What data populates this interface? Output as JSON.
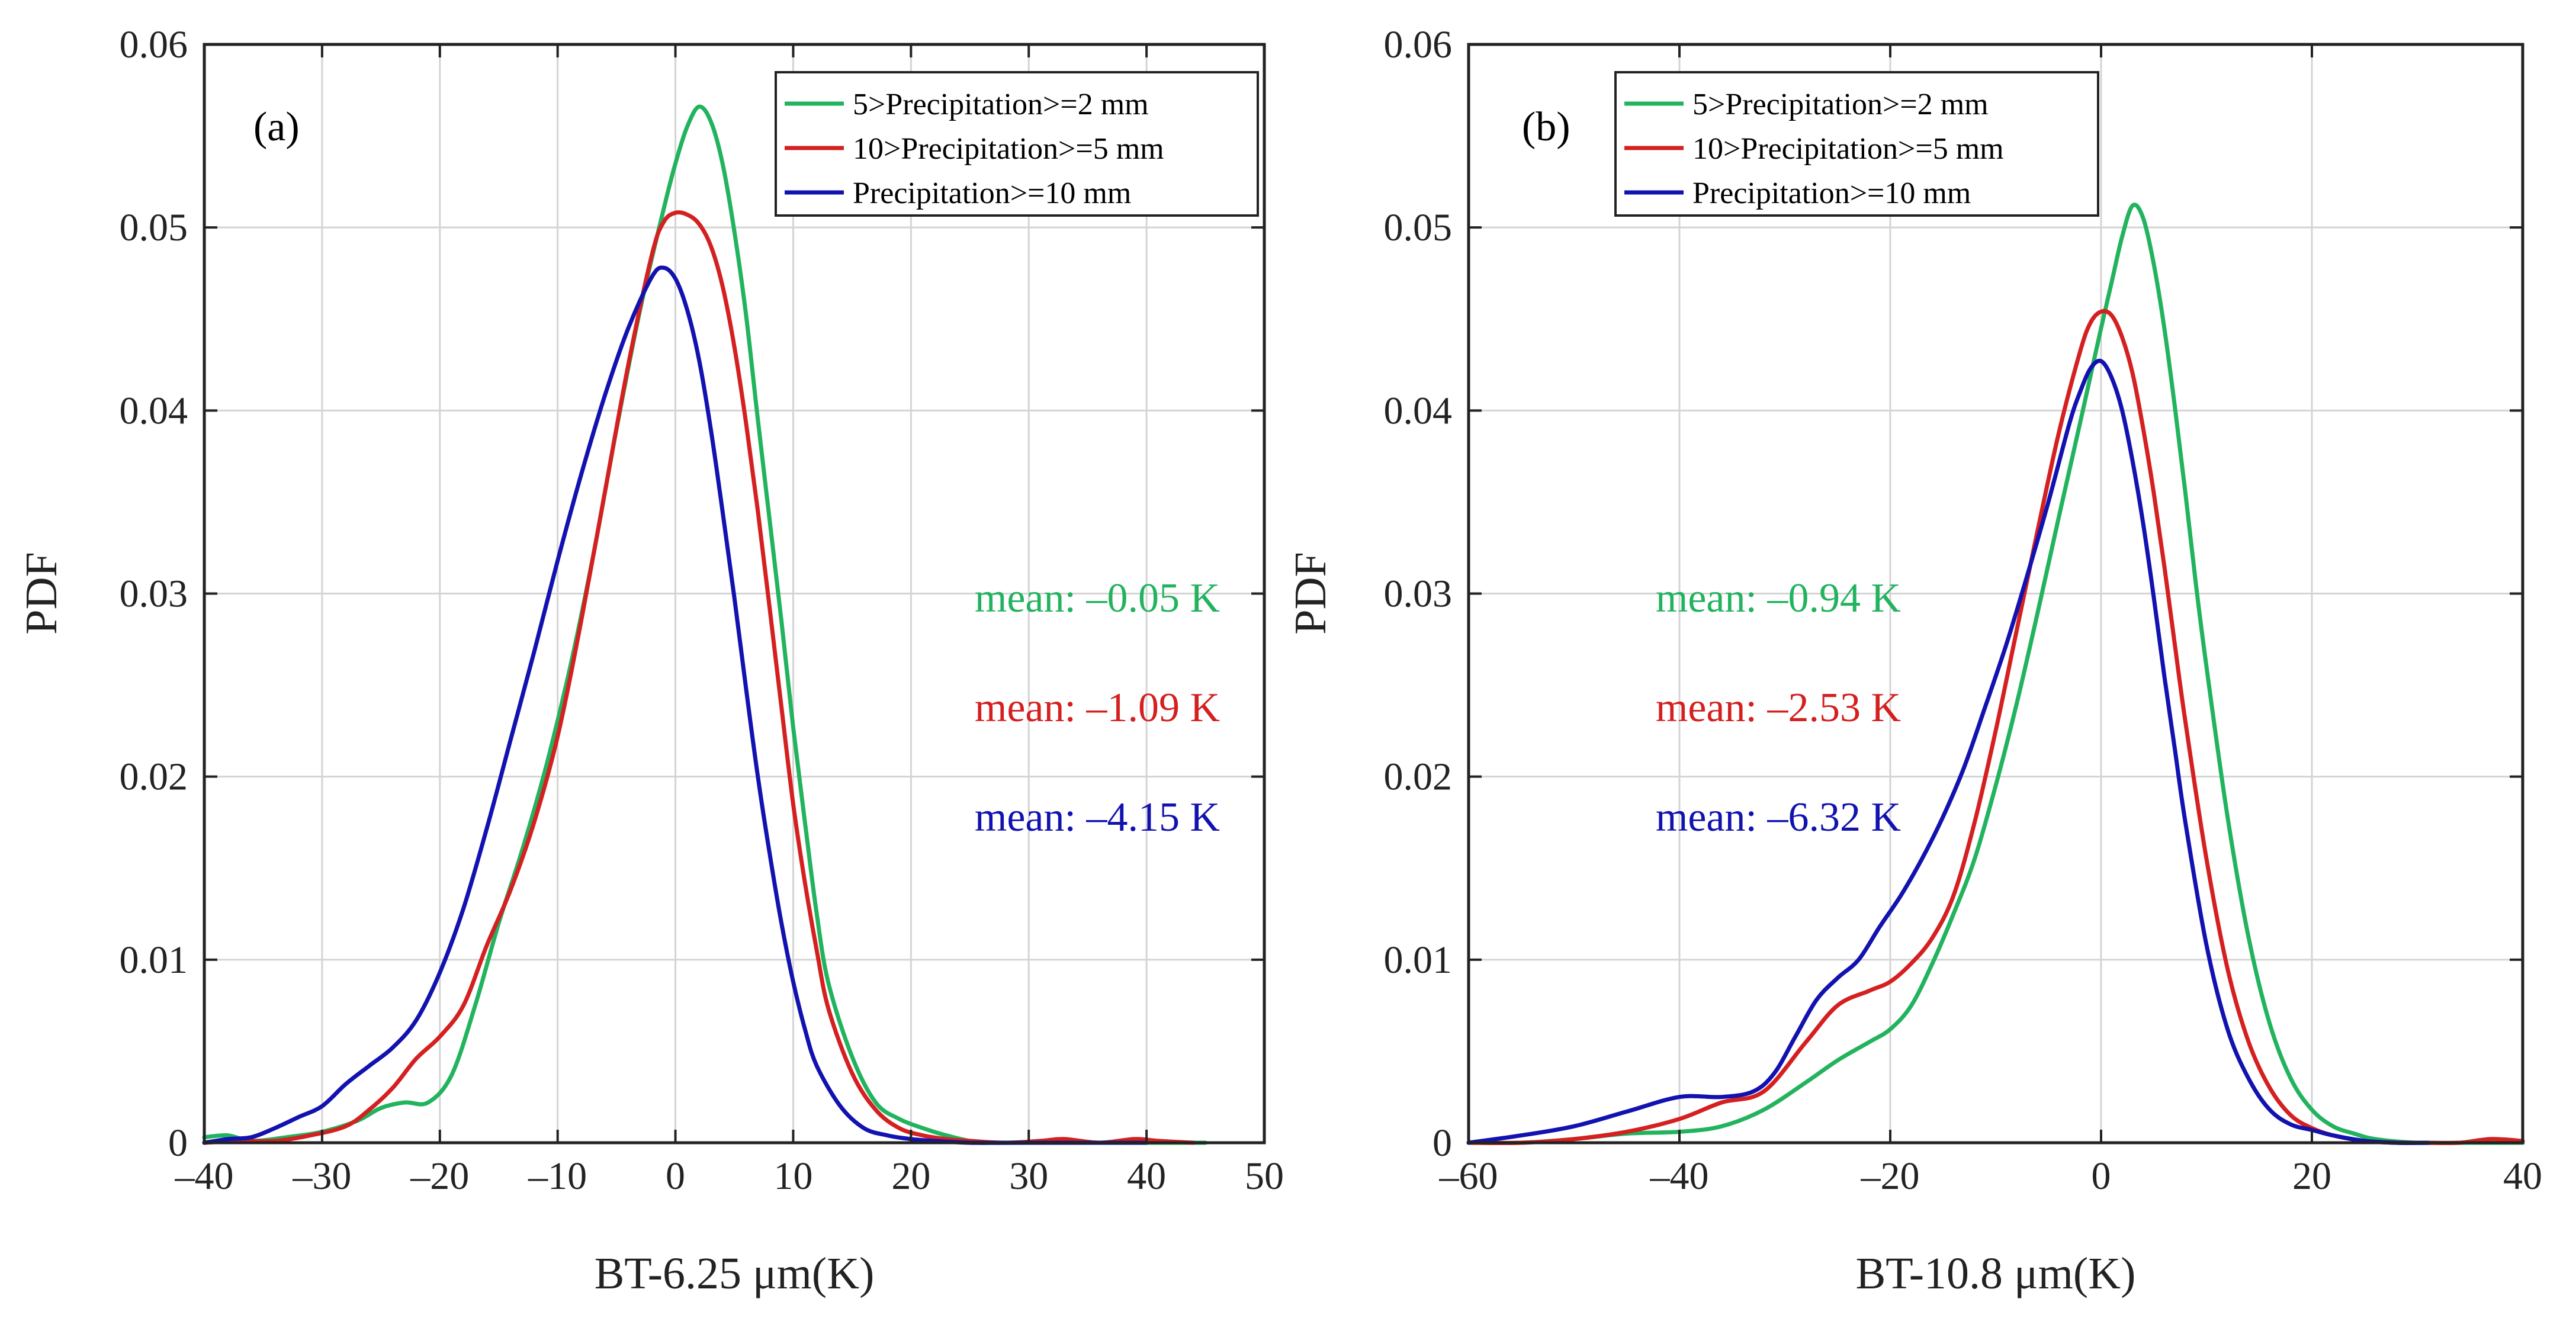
{
  "colors": {
    "green": "#22b35e",
    "red": "#d42020",
    "blue": "#1212b0"
  },
  "chart_data": [
    {
      "type": "line",
      "panel_tag": "(a)",
      "xlabel": "BT-6.25 μm(K)",
      "ylabel": "PDF",
      "xlim": [
        -40,
        50
      ],
      "ylim": [
        0,
        0.06
      ],
      "xticks": [
        -40,
        -30,
        -20,
        -10,
        0,
        10,
        20,
        30,
        40,
        50
      ],
      "xtick_labels": [
        "–40",
        "–30",
        "–20",
        "–10",
        "0",
        "10",
        "20",
        "30",
        "40",
        "50"
      ],
      "yticks": [
        0,
        0.01,
        0.02,
        0.03,
        0.04,
        0.05,
        0.06
      ],
      "ytick_labels": [
        "0",
        "0.01",
        "0.02",
        "0.03",
        "0.04",
        "0.05",
        "0.06"
      ],
      "grid": true,
      "legend_position": "top-right",
      "series": [
        {
          "name": "5>Precipitation>=2 mm",
          "color_key": "green",
          "x": [
            -40,
            -38,
            -36,
            -33,
            -30,
            -27,
            -25,
            -23,
            -21,
            -19,
            -17,
            -15,
            -13,
            -11,
            -9,
            -7,
            -5,
            -3,
            -1,
            0,
            1,
            2,
            3,
            4,
            5,
            6,
            7,
            8,
            9,
            10,
            11,
            12,
            13,
            15,
            17,
            19,
            21,
            23,
            25,
            27,
            30,
            35,
            40,
            45
          ],
          "y": [
            0.0003,
            0.0004,
            0.0001,
            0.0003,
            0.0006,
            0.0012,
            0.0019,
            0.0022,
            0.0022,
            0.0037,
            0.0075,
            0.012,
            0.016,
            0.0205,
            0.0258,
            0.032,
            0.039,
            0.0455,
            0.051,
            0.0535,
            0.0555,
            0.0566,
            0.0558,
            0.0535,
            0.0498,
            0.0452,
            0.0395,
            0.034,
            0.0285,
            0.0227,
            0.0175,
            0.0125,
            0.0087,
            0.0047,
            0.0022,
            0.0013,
            0.0008,
            0.0004,
            0.0001,
            0.0,
            0.0,
            0.0,
            0.0,
            0.0
          ]
        },
        {
          "name": "10>Precipitation>=5 mm",
          "color_key": "red",
          "x": [
            -40,
            -37,
            -34,
            -31,
            -28,
            -26,
            -24,
            -22,
            -20,
            -18,
            -16,
            -14,
            -12,
            -10,
            -8,
            -6,
            -4,
            -2,
            -1,
            0,
            1,
            2,
            3,
            4,
            5,
            6,
            7,
            8,
            9,
            10,
            11,
            12,
            13,
            15,
            17,
            19,
            21,
            23,
            25,
            28,
            31,
            33,
            36,
            39,
            41,
            44
          ],
          "y": [
            0.0,
            0.0001,
            0.0001,
            0.0004,
            0.0009,
            0.0018,
            0.003,
            0.0046,
            0.0058,
            0.0075,
            0.0108,
            0.0138,
            0.0175,
            0.0222,
            0.0285,
            0.0355,
            0.0425,
            0.0485,
            0.0503,
            0.0508,
            0.0507,
            0.0502,
            0.049,
            0.0468,
            0.0435,
            0.0393,
            0.0345,
            0.0292,
            0.0238,
            0.0185,
            0.0142,
            0.0105,
            0.0073,
            0.0038,
            0.0018,
            0.0008,
            0.0004,
            0.0002,
            0.0001,
            0.0,
            0.0001,
            0.0002,
            0.0,
            0.0002,
            0.0001,
            0.0
          ]
        },
        {
          "name": "Precipitation>=10 mm",
          "color_key": "blue",
          "x": [
            -40,
            -38,
            -36,
            -34,
            -32,
            -30,
            -28,
            -26,
            -24,
            -22,
            -20,
            -18,
            -16,
            -14,
            -12,
            -10,
            -8,
            -6,
            -4,
            -2,
            -1,
            0,
            1,
            2,
            3,
            4,
            5,
            6,
            7,
            8,
            9,
            10,
            11,
            12,
            14,
            16,
            18,
            20,
            22,
            25,
            28,
            32,
            36,
            40
          ],
          "y": [
            0.0,
            0.0002,
            0.0003,
            0.0008,
            0.0014,
            0.002,
            0.0032,
            0.0042,
            0.0052,
            0.0067,
            0.0093,
            0.0128,
            0.0172,
            0.022,
            0.0268,
            0.0318,
            0.0365,
            0.0408,
            0.0445,
            0.0473,
            0.0478,
            0.0472,
            0.0455,
            0.0428,
            0.039,
            0.0345,
            0.0298,
            0.0248,
            0.02,
            0.0158,
            0.012,
            0.0088,
            0.0062,
            0.0042,
            0.002,
            0.0008,
            0.0004,
            0.0002,
            0.0001,
            0.0,
            0.0,
            0.0,
            0.0,
            0.0
          ]
        }
      ],
      "annotations": [
        {
          "text": "mean: –0.05 K",
          "color_key": "green"
        },
        {
          "text": "mean: –1.09 K",
          "color_key": "red"
        },
        {
          "text": "mean: –4.15 K",
          "color_key": "blue"
        }
      ]
    },
    {
      "type": "line",
      "panel_tag": "(b)",
      "xlabel": "BT-10.8 μm(K)",
      "ylabel": "PDF",
      "xlim": [
        -60,
        40
      ],
      "ylim": [
        0,
        0.06
      ],
      "xticks": [
        -60,
        -40,
        -20,
        0,
        20,
        40
      ],
      "xtick_labels": [
        "–60",
        "–40",
        "–20",
        "0",
        "20",
        "40"
      ],
      "yticks": [
        0,
        0.01,
        0.02,
        0.03,
        0.04,
        0.05,
        0.06
      ],
      "ytick_labels": [
        "0",
        "0.01",
        "0.02",
        "0.03",
        "0.04",
        "0.05",
        "0.06"
      ],
      "grid": true,
      "legend_position": "top-left",
      "series": [
        {
          "name": "5>Precipitation>=2 mm",
          "color_key": "green",
          "x": [
            -60,
            -55,
            -50,
            -45,
            -40,
            -36,
            -32,
            -28,
            -25,
            -22,
            -20,
            -18,
            -16,
            -14,
            -12,
            -10,
            -8,
            -6,
            -4,
            -2,
            0,
            1,
            2,
            3,
            4,
            5,
            6,
            7,
            8,
            9,
            10,
            12,
            14,
            16,
            18,
            20,
            22,
            24,
            26,
            30,
            35,
            40
          ],
          "y": [
            0.0,
            0.0,
            0.0002,
            0.0005,
            0.0006,
            0.0009,
            0.0018,
            0.0033,
            0.0045,
            0.0055,
            0.0062,
            0.0075,
            0.0098,
            0.0125,
            0.0155,
            0.0195,
            0.024,
            0.029,
            0.0342,
            0.0393,
            0.0445,
            0.047,
            0.0495,
            0.0512,
            0.0505,
            0.048,
            0.0445,
            0.0402,
            0.0355,
            0.0305,
            0.026,
            0.0178,
            0.0112,
            0.0065,
            0.0035,
            0.0018,
            0.0009,
            0.0005,
            0.0002,
            0.0,
            0.0,
            0.0
          ]
        },
        {
          "name": "10>Precipitation>=5 mm",
          "color_key": "red",
          "x": [
            -60,
            -55,
            -50,
            -45,
            -40,
            -36,
            -32,
            -28,
            -25,
            -22,
            -20,
            -18,
            -16,
            -14,
            -12,
            -10,
            -8,
            -6,
            -4,
            -2,
            -1,
            0,
            1,
            2,
            3,
            4,
            5,
            6,
            7,
            8,
            10,
            12,
            14,
            16,
            18,
            20,
            22,
            25,
            28,
            31,
            34,
            37,
            40
          ],
          "y": [
            0.0,
            0.0,
            0.0002,
            0.0006,
            0.0013,
            0.0022,
            0.0028,
            0.0055,
            0.0075,
            0.0083,
            0.0088,
            0.0098,
            0.0112,
            0.0135,
            0.0175,
            0.0225,
            0.028,
            0.0335,
            0.0388,
            0.0432,
            0.0448,
            0.0454,
            0.0452,
            0.044,
            0.042,
            0.039,
            0.0355,
            0.0315,
            0.0272,
            0.023,
            0.0155,
            0.0095,
            0.0055,
            0.003,
            0.0015,
            0.0008,
            0.0004,
            0.0001,
            0.0,
            0.0,
            0.0,
            0.0002,
            0.0001
          ]
        },
        {
          "name": "Precipitation>=10 mm",
          "color_key": "blue",
          "x": [
            -60,
            -55,
            -50,
            -45,
            -40,
            -36,
            -33,
            -31,
            -29,
            -27,
            -25,
            -23,
            -21,
            -19,
            -17,
            -15,
            -13,
            -11,
            -9,
            -7,
            -5,
            -3,
            -2,
            -1,
            0,
            1,
            2,
            3,
            4,
            5,
            6,
            7,
            8,
            10,
            12,
            14,
            16,
            18,
            20,
            22,
            25,
            28,
            31
          ],
          "y": [
            0.0,
            0.0004,
            0.0009,
            0.0017,
            0.0025,
            0.0025,
            0.0028,
            0.0038,
            0.0058,
            0.0078,
            0.009,
            0.01,
            0.0118,
            0.0135,
            0.0155,
            0.0178,
            0.0205,
            0.0238,
            0.0272,
            0.031,
            0.035,
            0.0393,
            0.041,
            0.0423,
            0.0427,
            0.0418,
            0.04,
            0.0372,
            0.0338,
            0.0298,
            0.0255,
            0.0215,
            0.0175,
            0.0108,
            0.0062,
            0.0035,
            0.0018,
            0.001,
            0.0007,
            0.0004,
            0.0001,
            0.0,
            0.0
          ]
        }
      ],
      "annotations": [
        {
          "text": "mean: –0.94 K",
          "color_key": "green"
        },
        {
          "text": "mean: –2.53 K",
          "color_key": "red"
        },
        {
          "text": "mean: –6.32 K",
          "color_key": "blue"
        }
      ]
    }
  ]
}
